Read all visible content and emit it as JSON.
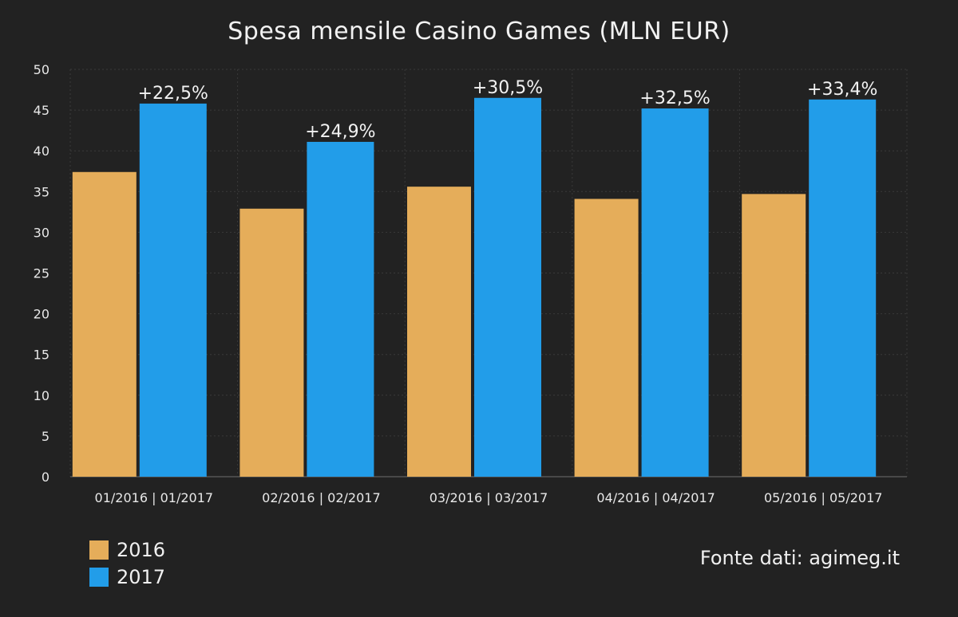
{
  "chart_data": {
    "type": "bar",
    "title": "Spesa mensile Casino Games (MLN EUR)",
    "xlabel": "",
    "ylabel": "",
    "ylim": [
      0,
      50
    ],
    "yticks": [
      0,
      5,
      10,
      15,
      20,
      25,
      30,
      35,
      40,
      45,
      50
    ],
    "categories": [
      "01/2016 | 01/2017",
      "02/2016 | 02/2017",
      "03/2016 | 03/2017",
      "04/2016 | 04/2017",
      "05/2016 | 05/2017"
    ],
    "series": [
      {
        "name": "2016",
        "color": "#e5ad5a",
        "values": [
          37.4,
          32.9,
          35.6,
          34.1,
          34.7
        ]
      },
      {
        "name": "2017",
        "color": "#229de9",
        "values": [
          45.8,
          41.1,
          46.5,
          45.2,
          46.3
        ]
      }
    ],
    "annotations": [
      "+22,5%",
      "+24,9%",
      "+30,5%",
      "+32,5%",
      "+33,4%"
    ],
    "grid": true,
    "legend_position": "bottom-left",
    "source": "Fonte dati: agimeg.it"
  }
}
